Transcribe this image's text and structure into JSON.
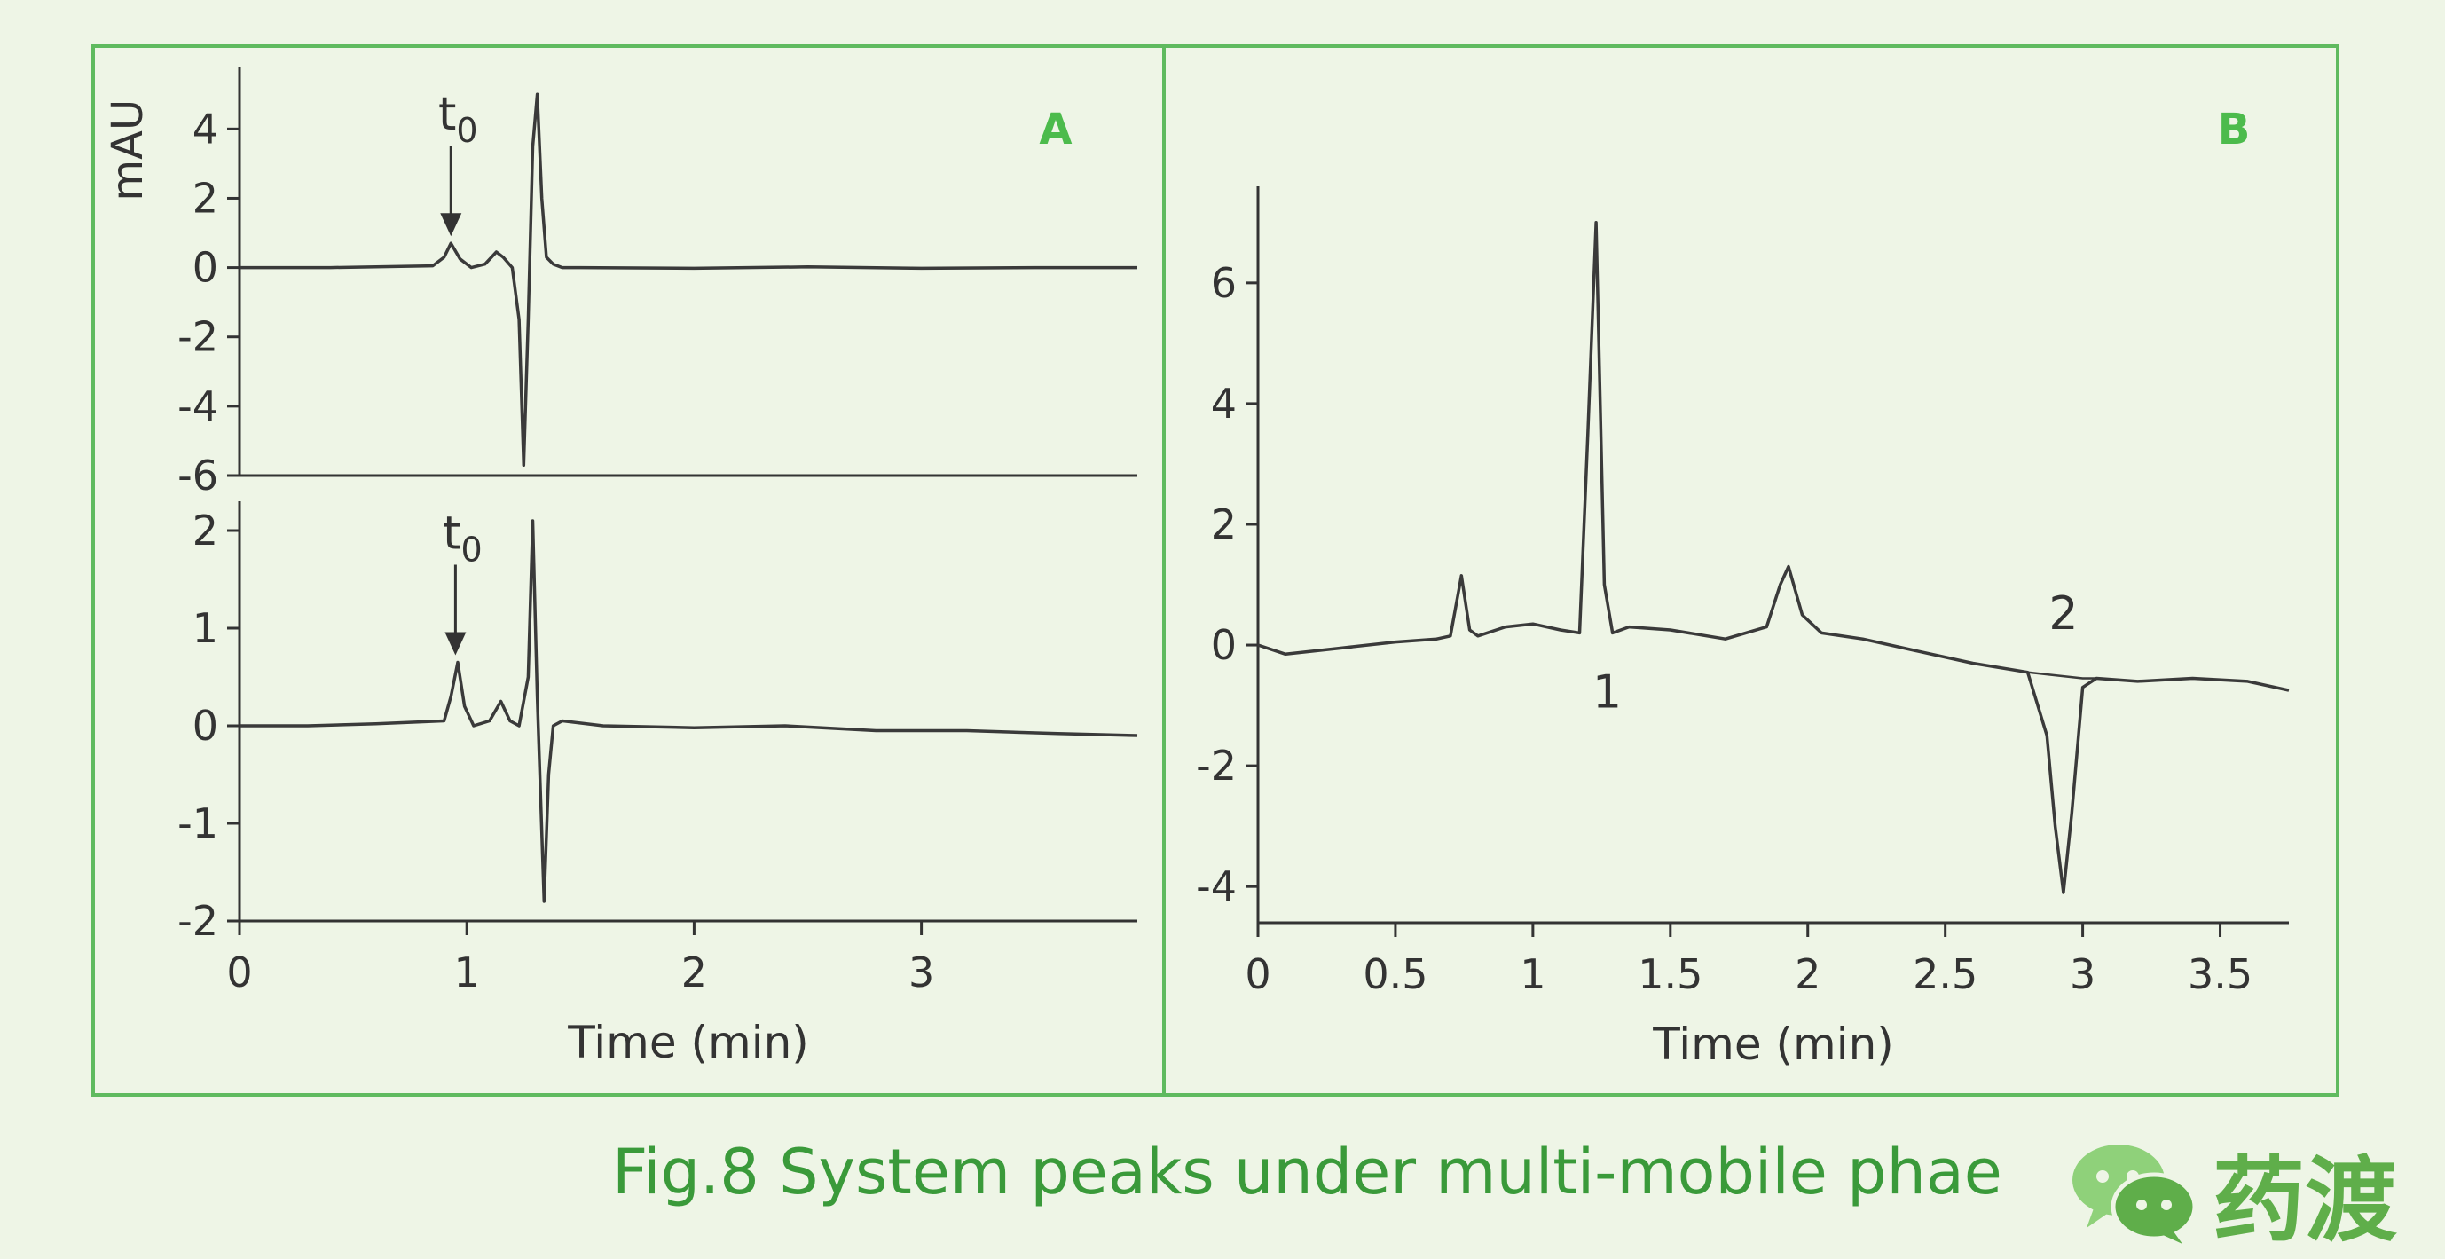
{
  "caption": "Fig.8 System peaks under multi-mobile phae",
  "brand": {
    "name": "药渡",
    "icon": "wechat-icon"
  },
  "colors": {
    "frame": "#5fba5f",
    "panel_label": "#4cbb4c",
    "axis": "#333333",
    "trace": "#3a3a3a",
    "caption": "#3a9a3a",
    "background": "#eef5e6"
  },
  "chart_data": [
    {
      "panel": "A",
      "type": "line",
      "subplot": "top",
      "ylabel": "mAU",
      "xlim": [
        0,
        3.95
      ],
      "ylim": [
        -6,
        5.8
      ],
      "yticks": [
        4,
        2,
        0,
        -2,
        -4,
        -6
      ],
      "ytick_labels": [
        "4",
        "2",
        "0",
        "-2",
        "-4",
        "-6"
      ],
      "annotations": [
        {
          "text": "t0",
          "x": 0.93,
          "y": 0.7,
          "arrow": true
        }
      ],
      "series": [
        {
          "x": [
            0,
            0.4,
            0.85,
            0.9,
            0.93,
            0.97,
            1.02,
            1.08,
            1.13,
            1.16,
            1.2,
            1.23,
            1.25,
            1.27,
            1.29,
            1.31,
            1.33,
            1.35,
            1.38,
            1.42,
            1.5,
            2.0,
            2.5,
            3.0,
            3.5,
            3.95
          ],
          "y": [
            0,
            0,
            0.05,
            0.3,
            0.7,
            0.25,
            0.0,
            0.1,
            0.45,
            0.3,
            0.0,
            -1.5,
            -5.7,
            -1.5,
            3.5,
            5.0,
            2.0,
            0.3,
            0.1,
            0.0,
            0.0,
            -0.02,
            0.02,
            -0.02,
            0.0,
            0.0
          ]
        }
      ]
    },
    {
      "panel": "A",
      "type": "line",
      "subplot": "bottom",
      "xlabel": "Time (min)",
      "xlim": [
        0,
        3.95
      ],
      "ylim": [
        -2,
        2.3
      ],
      "xticks": [
        0,
        1,
        2,
        3
      ],
      "xtick_labels": [
        "0",
        "1",
        "2",
        "3"
      ],
      "yticks": [
        2,
        1,
        0,
        -1,
        -2
      ],
      "ytick_labels": [
        "2",
        "1",
        "0",
        "-1",
        "-2"
      ],
      "annotations": [
        {
          "text": "t0",
          "x": 0.95,
          "y": 0.65,
          "arrow": true
        }
      ],
      "series": [
        {
          "x": [
            0,
            0.3,
            0.6,
            0.9,
            0.93,
            0.96,
            0.99,
            1.03,
            1.1,
            1.15,
            1.19,
            1.23,
            1.27,
            1.29,
            1.31,
            1.34,
            1.36,
            1.38,
            1.42,
            1.6,
            2.0,
            2.4,
            2.8,
            3.2,
            3.6,
            3.95
          ],
          "y": [
            0,
            0,
            0.02,
            0.05,
            0.3,
            0.65,
            0.2,
            0.0,
            0.05,
            0.25,
            0.05,
            0.0,
            0.5,
            2.1,
            0.3,
            -1.8,
            -0.5,
            0.0,
            0.05,
            0.0,
            -0.02,
            0.0,
            -0.05,
            -0.05,
            -0.08,
            -0.1
          ]
        }
      ]
    },
    {
      "panel": "B",
      "type": "line",
      "xlabel": "Time (min)",
      "xlim": [
        0,
        3.75
      ],
      "ylim": [
        -4.6,
        7.6
      ],
      "xticks": [
        0,
        0.5,
        1,
        1.5,
        2,
        2.5,
        3,
        3.5
      ],
      "xtick_labels": [
        "0",
        "0.5",
        "1",
        "1.5",
        "2",
        "2.5",
        "3",
        "3.5"
      ],
      "yticks": [
        6,
        4,
        2,
        0,
        -2,
        -4
      ],
      "ytick_labels": [
        "6",
        "4",
        "2",
        "0",
        "-2",
        "-4"
      ],
      "annotations": [
        {
          "text": "1",
          "x": 1.27,
          "y": -0.8
        },
        {
          "text": "2",
          "x": 2.93,
          "y": 0.5
        }
      ],
      "series": [
        {
          "x": [
            0,
            0.1,
            0.3,
            0.5,
            0.65,
            0.7,
            0.74,
            0.77,
            0.8,
            0.9,
            1.0,
            1.1,
            1.17,
            1.2,
            1.23,
            1.26,
            1.29,
            1.35,
            1.5,
            1.7,
            1.85,
            1.9,
            1.93,
            1.98,
            2.05,
            2.2,
            2.4,
            2.6,
            2.8,
            2.87,
            2.9,
            2.93,
            2.96,
            3.0,
            3.05,
            3.2,
            3.4,
            3.6,
            3.75
          ],
          "y": [
            0.0,
            -0.15,
            -0.05,
            0.05,
            0.1,
            0.15,
            1.15,
            0.25,
            0.15,
            0.3,
            0.35,
            0.25,
            0.2,
            3.5,
            7.0,
            1.0,
            0.2,
            0.3,
            0.25,
            0.1,
            0.3,
            1.0,
            1.3,
            0.5,
            0.2,
            0.1,
            -0.1,
            -0.3,
            -0.45,
            -1.5,
            -3.0,
            -4.1,
            -2.8,
            -0.7,
            -0.55,
            -0.6,
            -0.55,
            -0.6,
            -0.75
          ]
        },
        {
          "x": [
            2.8,
            2.9,
            3.0,
            3.05
          ],
          "y": [
            -0.45,
            -0.5,
            -0.55,
            -0.55
          ]
        }
      ]
    }
  ]
}
